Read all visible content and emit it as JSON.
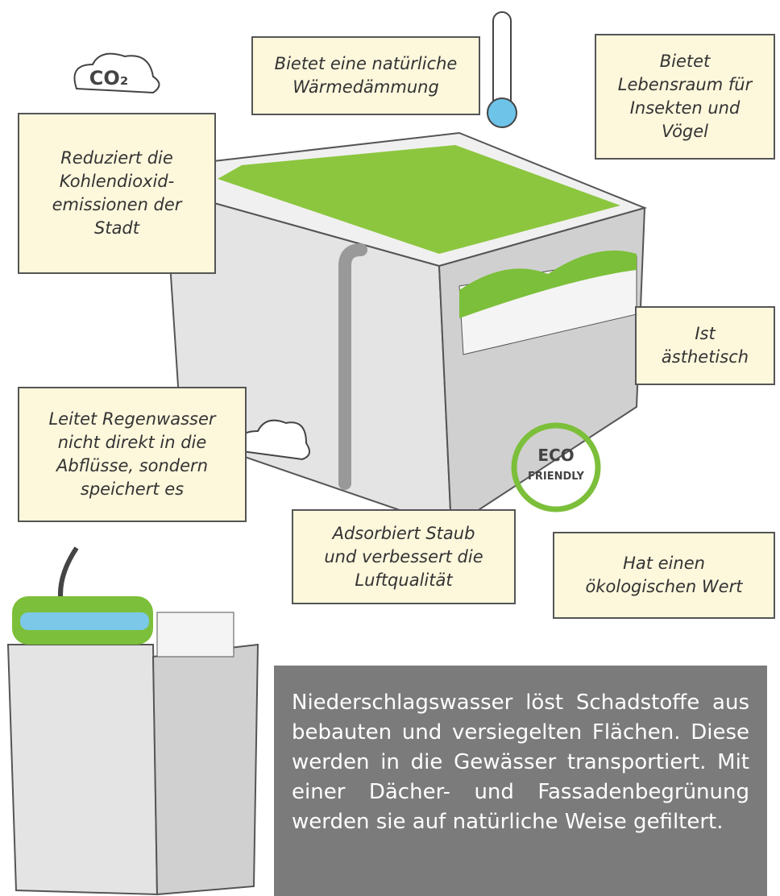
{
  "callouts": [
    {
      "lines": [
        "Reduziert die",
        "Kohlendioxid-",
        "emissionen der",
        "Stadt"
      ]
    },
    {
      "lines": [
        "Bietet eine natürliche",
        "Wärmedämmung"
      ]
    },
    {
      "lines": [
        "Bietet",
        "Lebensraum für",
        "Insekten und",
        "Vögel"
      ]
    },
    {
      "lines": [
        "Ist",
        "ästhetisch"
      ]
    },
    {
      "lines": [
        "Leitet Regenwasser",
        "nicht direkt in die",
        "Abflüsse, sondern",
        "speichert es"
      ]
    },
    {
      "lines": [
        "Adsorbiert Staub",
        "und verbessert die",
        "Luftqualität"
      ]
    },
    {
      "lines": [
        "Hat einen",
        "ökologischen Wert"
      ]
    }
  ],
  "icons": {
    "co2": "CO₂",
    "eco": "ECO",
    "friendly": "FRIENDLY"
  },
  "info": {
    "lines": [
      "Niederschlagswasser löst Schadstoffe aus",
      "bebauten und versiegelten Flächen. Diese",
      "werden in die Gewässer transportiert. Mit",
      "einer Dächer- und Fassadenbegrünung",
      "werden sie auf natürliche Weise gefiltert."
    ]
  }
}
